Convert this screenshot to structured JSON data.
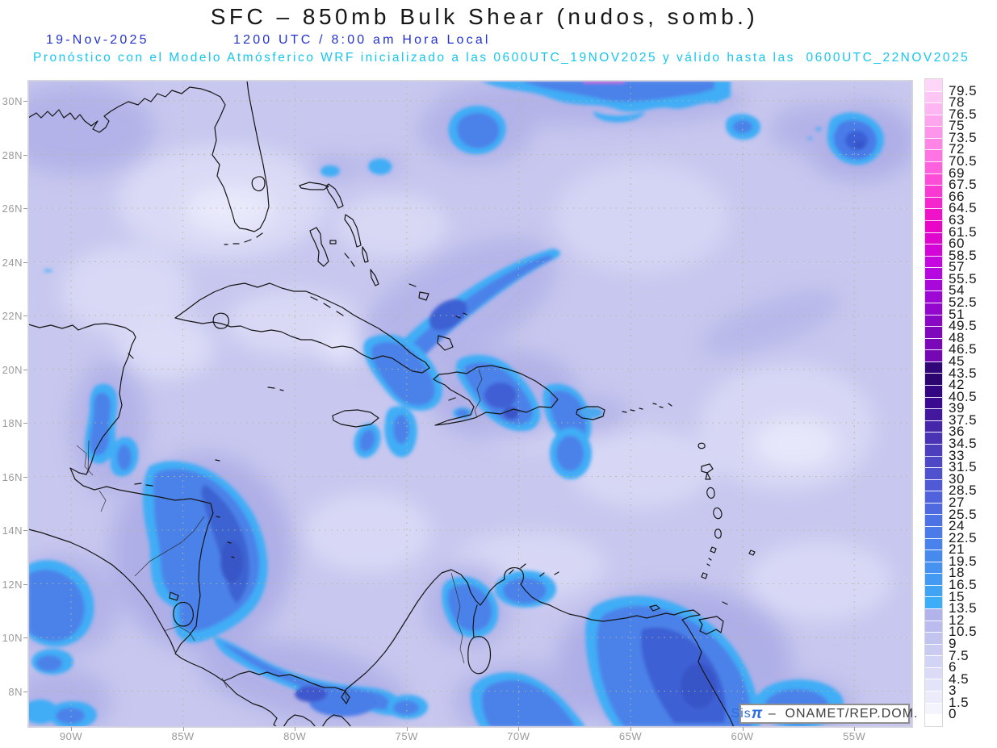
{
  "header": {
    "title": "SFC – 850mb Bulk Shear (nudos, somb.)",
    "date": "19-Nov-2025",
    "time": "1200 UTC / 8:00 am Hora Local",
    "note": "Pronóstico con el Modelo Atmósferico WRF inicializado a las 0600UTC_19NOV2025 y válido hasta las  0600UTC_22NOV2025"
  },
  "map": {
    "lat_labels": [
      "30N",
      "28N",
      "26N",
      "24N",
      "22N",
      "20N",
      "18N",
      "16N",
      "14N",
      "12N",
      "10N",
      "8N"
    ],
    "lon_labels": [
      "90W",
      "85W",
      "80W",
      "75W",
      "70W",
      "65W",
      "60W",
      "55W"
    ]
  },
  "colorbar": {
    "unit": "nudos",
    "tick_labels": [
      "79.5",
      "78",
      "76.5",
      "75",
      "73.5",
      "72",
      "70.5",
      "69",
      "67.5",
      "66",
      "64.5",
      "63",
      "61.5",
      "60",
      "58.5",
      "57",
      "55.5",
      "54",
      "52.5",
      "51",
      "49.5",
      "48",
      "46.5",
      "45",
      "43.5",
      "42",
      "40.5",
      "39",
      "37.5",
      "36",
      "34.5",
      "33",
      "31.5",
      "30",
      "28.5",
      "27",
      "25.5",
      "24",
      "22.5",
      "21",
      "19.5",
      "18",
      "16.5",
      "15",
      "13.5",
      "12",
      "10.5",
      "9",
      "7.5",
      "6",
      "4.5",
      "3",
      "1.5",
      "0"
    ],
    "cell_colors": [
      "#ffd5f8",
      "#ffc5f4",
      "#ffb5f1",
      "#ffa5ee",
      "#ff95ea",
      "#ff84e6",
      "#ff73e2",
      "#ff60dd",
      "#fc4dd8",
      "#f83ad3",
      "#f426ce",
      "#f012c8",
      "#ea06c6",
      "#df06ce",
      "#d207d7",
      "#c408df",
      "#b508e1",
      "#a908db",
      "#9e08d4",
      "#9308cc",
      "#8908c4",
      "#7f07bc",
      "#7a07b8",
      "#7607b4",
      "#300679",
      "#2c0570",
      "#320682",
      "#3a0b91",
      "#41189e",
      "#4627aa",
      "#4a33b4",
      "#4d3ebd",
      "#4f48c6",
      "#5051ce",
      "#515ad6",
      "#5062dc",
      "#4f6ae1",
      "#4d72e5",
      "#4b7ae9",
      "#4982ec",
      "#478aee",
      "#4592f0",
      "#439af2",
      "#40a3f4",
      "#3caef7",
      "#b3b3ec",
      "#bbbbee",
      "#c3c3f0",
      "#cbcbf2",
      "#d3d3f5",
      "#dbdbf7",
      "#e3e3f9",
      "#ebebfb",
      "#f4f4fd",
      "#ffffff"
    ]
  },
  "attribution": {
    "brand": "Sis",
    "pi": "π",
    "credit": " –  ONAMET/REP.DOM."
  },
  "colors": {
    "title": "#161616",
    "datetime": "#2433cf",
    "note": "#17c6ee",
    "axis": "#9a9a9a",
    "brand": "#2e6ce0",
    "credit": "#3f3f3f",
    "map_base": "#c7c7ef",
    "blue_rim": "#3fadf6",
    "blue_mid": "#4b82e9",
    "blue_core": "#3d60d3"
  }
}
